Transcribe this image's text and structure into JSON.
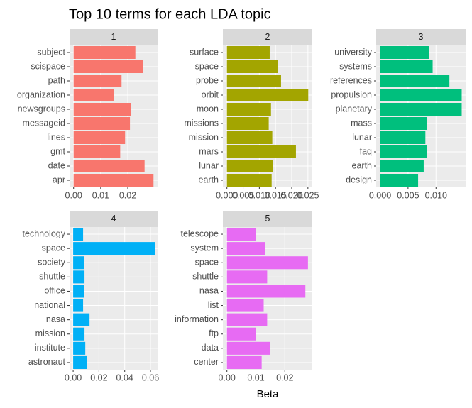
{
  "title": "Top 10 terms for each LDA topic",
  "x_label": "Beta",
  "chart_data": [
    {
      "type": "bar",
      "orientation": "horizontal",
      "facet": "1",
      "color": "#F8766D",
      "categories": [
        "subject",
        "scispace",
        "path",
        "organization",
        "newsgroups",
        "messageid",
        "lines",
        "gmt",
        "date",
        "apr"
      ],
      "values": [
        0.0228,
        0.0256,
        0.0177,
        0.0149,
        0.0213,
        0.0208,
        0.019,
        0.0172,
        0.0262,
        0.0295
      ],
      "xlim": [
        -0.0015,
        0.031
      ],
      "xticks": [
        {
          "value": 0,
          "label": "0.00"
        },
        0.01,
        0.02
      ],
      "grid": true
    },
    {
      "type": "bar",
      "orientation": "horizontal",
      "facet": "2",
      "color": "#A3A500",
      "categories": [
        "surface",
        "space",
        "probe",
        "orbit",
        "moon",
        "missions",
        "mission",
        "mars",
        "lunar",
        "earth"
      ],
      "values": [
        0.0132,
        0.0158,
        0.0167,
        0.0251,
        0.0136,
        0.0129,
        0.014,
        0.0213,
        0.0143,
        0.0138
      ],
      "xlim": [
        -0.00125,
        0.02635
      ],
      "xticks": [
        {
          "value": 0,
          "label": "0.000"
        },
        0.005,
        {
          "value": 0.01,
          "label": "0.010"
        },
        0.015,
        {
          "value": 0.02,
          "label": "0.020"
        },
        0.025
      ],
      "grid": true
    },
    {
      "type": "bar",
      "orientation": "horizontal",
      "facet": "3",
      "color": "#00BF7D",
      "categories": [
        "university",
        "systems",
        "references",
        "propulsion",
        "planetary",
        "mass",
        "lunar",
        "faq",
        "earth",
        "design"
      ],
      "values": [
        0.0087,
        0.0094,
        0.0124,
        0.0146,
        0.0146,
        0.0084,
        0.0081,
        0.0084,
        0.0078,
        0.0068
      ],
      "xlim": [
        -0.0007,
        0.0153
      ],
      "xticks": [
        {
          "value": 0,
          "label": "0.000"
        },
        0.005,
        {
          "value": 0.01,
          "label": "0.010"
        }
      ],
      "grid": true
    },
    {
      "type": "bar",
      "orientation": "horizontal",
      "facet": "4",
      "color": "#00B0F6",
      "categories": [
        "technology",
        "space",
        "society",
        "shuttle",
        "office",
        "national",
        "nasa",
        "mission",
        "institute",
        "astronaut"
      ],
      "values": [
        0.0077,
        0.0633,
        0.0083,
        0.0088,
        0.0083,
        0.0077,
        0.0127,
        0.0088,
        0.0094,
        0.0105
      ],
      "xlim": [
        -0.0028,
        0.0655
      ],
      "xticks": [
        {
          "value": 0,
          "label": "0.00"
        },
        0.02,
        0.04,
        0.06
      ],
      "grid": true
    },
    {
      "type": "bar",
      "orientation": "horizontal",
      "facet": "5",
      "color": "#E76BF3",
      "categories": [
        "telescope",
        "system",
        "space",
        "shuttle",
        "nasa",
        "list",
        "information",
        "ftp",
        "data",
        "center"
      ],
      "values": [
        0.01,
        0.0132,
        0.028,
        0.0139,
        0.0271,
        0.0127,
        0.0139,
        0.01,
        0.0149,
        0.012
      ],
      "xlim": [
        -0.0014,
        0.0295
      ],
      "xticks": [
        {
          "value": 0,
          "label": "0.00"
        },
        0.01,
        0.02
      ],
      "grid": true
    }
  ]
}
